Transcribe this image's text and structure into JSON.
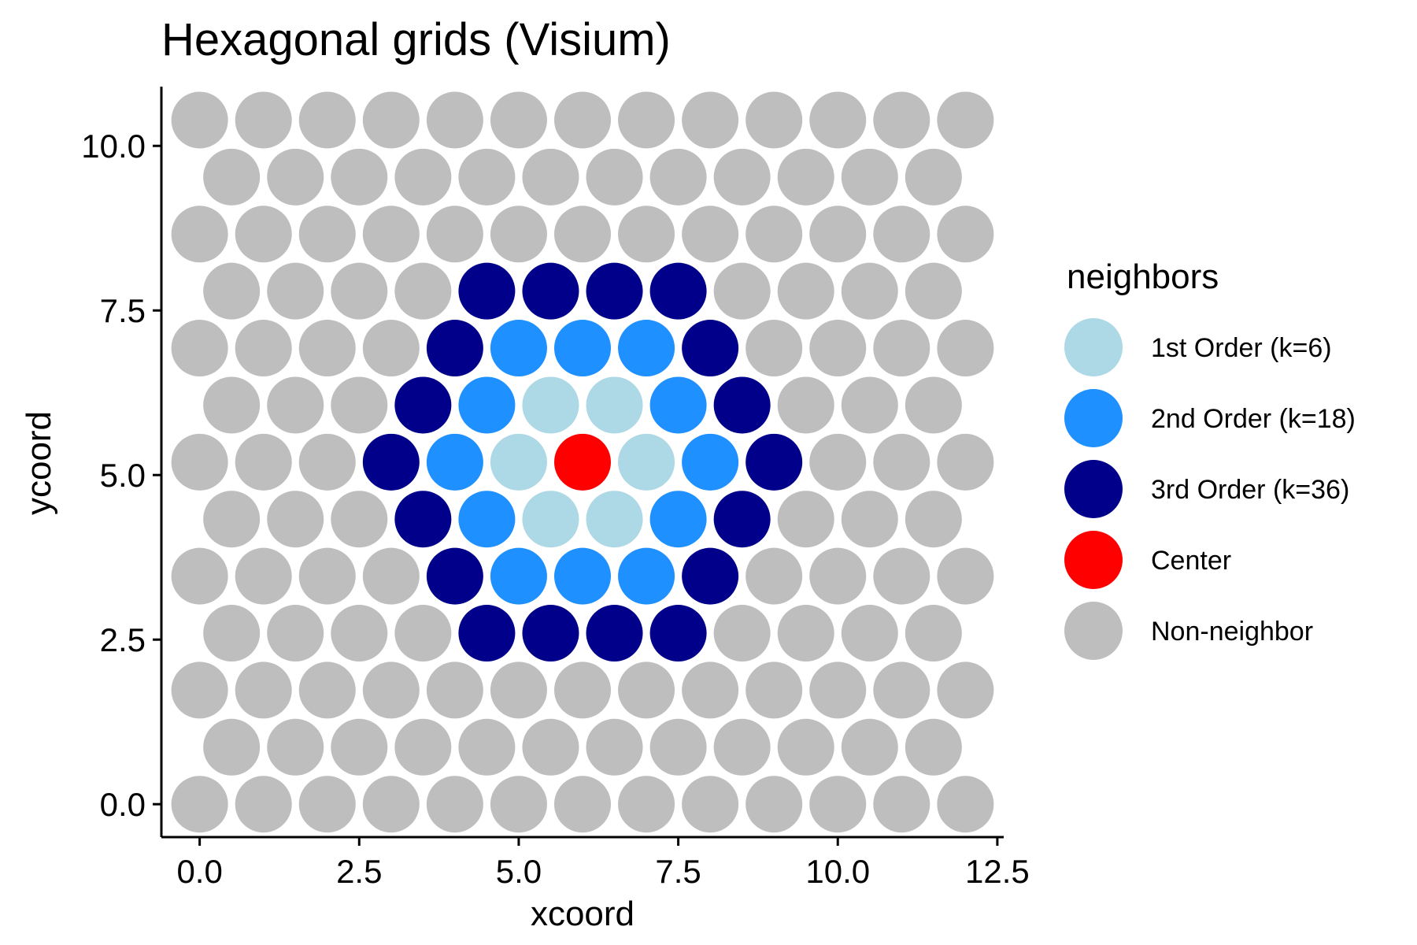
{
  "chart_data": {
    "type": "scatter",
    "title": "Hexagonal grids (Visium)",
    "xlabel": "xcoord",
    "ylabel": "ycoord",
    "xlim": [
      -0.6,
      12.6
    ],
    "ylim": [
      -0.5,
      10.9
    ],
    "x_ticks": [
      "0.0",
      "2.5",
      "5.0",
      "7.5",
      "10.0",
      "12.5"
    ],
    "y_ticks": [
      "0.0",
      "2.5",
      "5.0",
      "7.5",
      "10.0"
    ],
    "grid": false,
    "legend": {
      "title": "neighbors",
      "placement": "right",
      "entries": [
        {
          "key": "first",
          "label": "1st Order (k=6)",
          "color": "#ADD8E6"
        },
        {
          "key": "second",
          "label": "2nd Order (k=18)",
          "color": "#1E90FF"
        },
        {
          "key": "third",
          "label": "3rd Order (k=36)",
          "color": "#00008B"
        },
        {
          "key": "center",
          "label": "Center",
          "color": "#FF0000"
        },
        {
          "key": "none",
          "label": "Non-neighbor",
          "color": "#BEBEBE"
        }
      ]
    },
    "grid_spec": {
      "rows": 13,
      "row_step_y": 0.866,
      "x_step": 1.0,
      "even_row_x": [
        0,
        1,
        2,
        3,
        4,
        5,
        6,
        7,
        8,
        9,
        10,
        11,
        12
      ],
      "odd_row_x": [
        0.5,
        1.5,
        2.5,
        3.5,
        4.5,
        5.5,
        6.5,
        7.5,
        8.5,
        9.5,
        10.5,
        11.5
      ]
    },
    "center": {
      "x": 6.0,
      "y": 5.196
    },
    "series": [
      {
        "name": "Center",
        "color": "#FF0000",
        "points": [
          [
            6.0,
            5.196
          ]
        ]
      },
      {
        "name": "1st Order (k=6)",
        "color": "#ADD8E6",
        "points": [
          [
            5.0,
            5.196
          ],
          [
            7.0,
            5.196
          ],
          [
            5.5,
            6.062
          ],
          [
            6.5,
            6.062
          ],
          [
            5.5,
            4.33
          ],
          [
            6.5,
            4.33
          ]
        ]
      },
      {
        "name": "2nd Order (k=18)",
        "color": "#1E90FF",
        "points": [
          [
            4.0,
            5.196
          ],
          [
            8.0,
            5.196
          ],
          [
            4.5,
            6.062
          ],
          [
            7.5,
            6.062
          ],
          [
            4.5,
            4.33
          ],
          [
            7.5,
            4.33
          ],
          [
            5.0,
            6.928
          ],
          [
            6.0,
            6.928
          ],
          [
            7.0,
            6.928
          ],
          [
            5.0,
            3.464
          ],
          [
            6.0,
            3.464
          ],
          [
            7.0,
            3.464
          ]
        ]
      },
      {
        "name": "3rd Order (k=36)",
        "color": "#00008B",
        "points": [
          [
            3.0,
            5.196
          ],
          [
            9.0,
            5.196
          ],
          [
            3.5,
            6.062
          ],
          [
            8.5,
            6.062
          ],
          [
            3.5,
            4.33
          ],
          [
            8.5,
            4.33
          ],
          [
            4.0,
            6.928
          ],
          [
            8.0,
            6.928
          ],
          [
            4.0,
            3.464
          ],
          [
            8.0,
            3.464
          ],
          [
            4.5,
            7.794
          ],
          [
            5.5,
            7.794
          ],
          [
            6.5,
            7.794
          ],
          [
            7.5,
            7.794
          ],
          [
            4.5,
            2.598
          ],
          [
            5.5,
            2.598
          ],
          [
            6.5,
            2.598
          ],
          [
            7.5,
            2.598
          ]
        ]
      },
      {
        "name": "Non-neighbor",
        "color": "#BEBEBE",
        "points": "all remaining grid positions"
      }
    ]
  }
}
